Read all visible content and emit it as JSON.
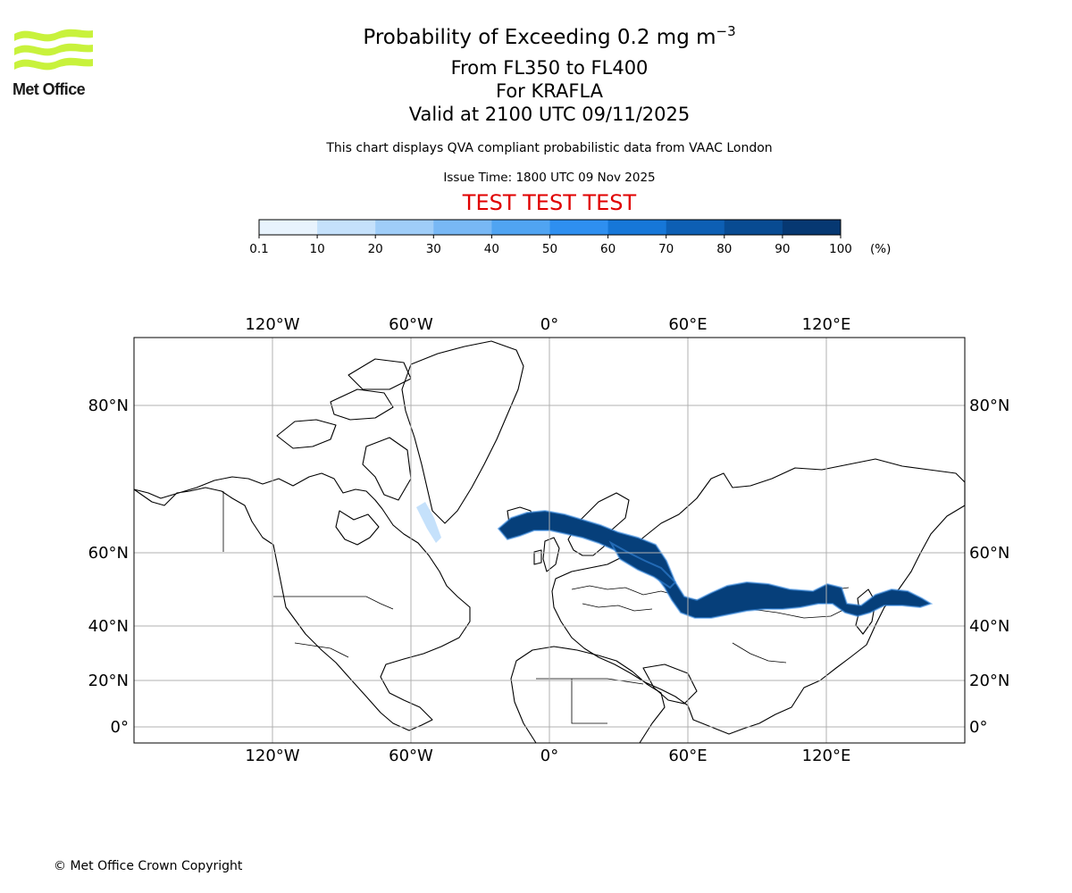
{
  "logo": {
    "name": "Met Office"
  },
  "header": {
    "title_main": "Probability of Exceeding 0.2 mg m",
    "title_sup": "−3",
    "levels": "From FL350 to FL400",
    "volcano": "For KRAFLA",
    "valid": "Valid at 2100 UTC 09/11/2025",
    "description": "This chart displays QVA compliant probabilistic data from VAAC London",
    "issue_time": "Issue Time: 1800 UTC 09 Nov 2025",
    "test_banner": "TEST TEST TEST"
  },
  "colorbar": {
    "ticks": [
      "0.1",
      "10",
      "20",
      "30",
      "40",
      "50",
      "60",
      "70",
      "80",
      "90",
      "100"
    ],
    "unit": "(%)",
    "colors": [
      "#e8f3fd",
      "#c5e1fb",
      "#9fcdf8",
      "#78b8f5",
      "#50a4f2",
      "#2e8ff0",
      "#1677d8",
      "#0d5fb4",
      "#084b92",
      "#063872"
    ]
  },
  "map": {
    "lon_ticks": [
      "120°W",
      "60°W",
      "0°",
      "60°E",
      "120°E"
    ],
    "lat_ticks": [
      "80°N",
      "60°N",
      "40°N",
      "20°N",
      "0°"
    ],
    "plume_color": "#063f7a",
    "plume_edge_color": "#3a8ee6"
  },
  "footer": {
    "copyright": "© Met Office Crown Copyright"
  }
}
